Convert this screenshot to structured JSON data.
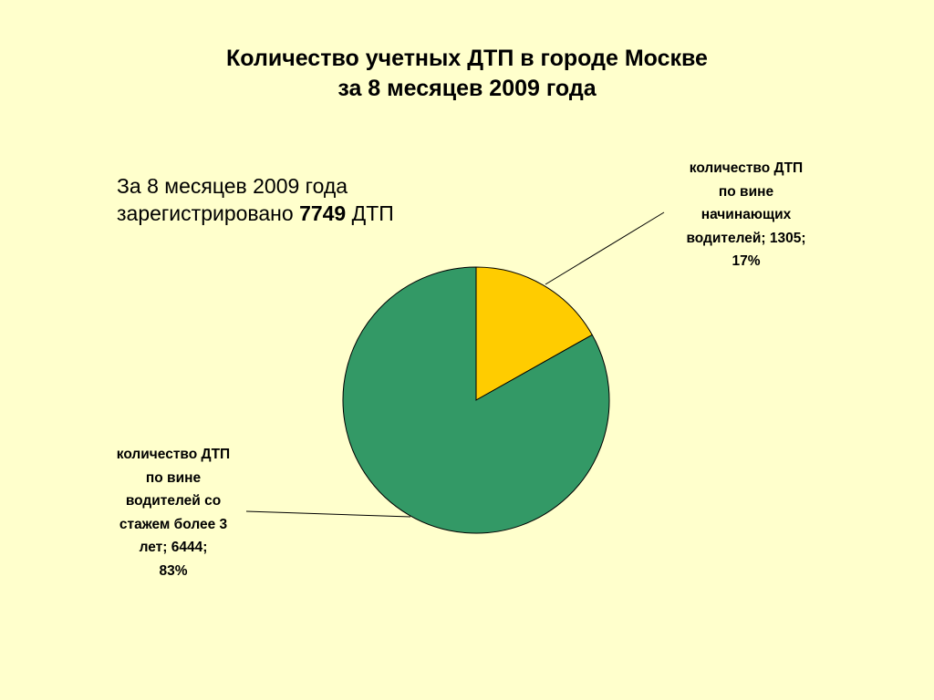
{
  "title": {
    "line1": "Количество учетных ДТП в городе Москве",
    "line2": "за 8 месяцев 2009 года"
  },
  "subtitle": {
    "line1": "За 8 месяцев 2009 года",
    "line2_prefix": "зарегистрировано",
    "line2_number": "7749",
    "line2_suffix": "ДТП"
  },
  "chart_data": {
    "type": "pie",
    "total": 7749,
    "slices": [
      {
        "label_lines": [
          "количество ДТП",
          "по вине",
          "начинающих",
          "водителей; 1305;",
          "17%"
        ],
        "value": 1305,
        "percent": 17,
        "color": "#ffcc00"
      },
      {
        "label_lines": [
          "количество ДТП",
          "по вине",
          "водителей со",
          "стажем более 3",
          "лет; 6444;",
          "83%"
        ],
        "value": 6444,
        "percent": 83,
        "color": "#339966"
      }
    ]
  }
}
